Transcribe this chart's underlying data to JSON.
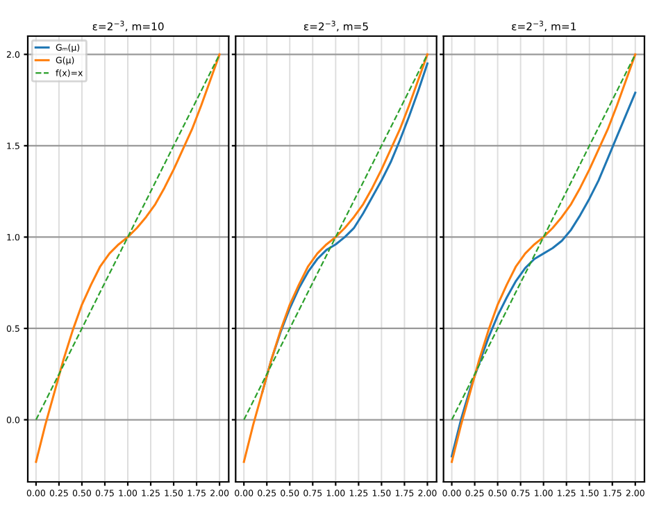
{
  "chart_data": [
    {
      "type": "line",
      "title": "ε=2$^{−3}$, m=10",
      "xlim": [
        -0.09,
        2.1
      ],
      "ylim": [
        -0.34,
        2.1
      ],
      "xticks": [
        {
          "value": 0,
          "label": "0.00"
        },
        {
          "value": 0.25,
          "label": "0.25"
        },
        {
          "value": 0.5,
          "label": "0.50"
        },
        {
          "value": 0.75,
          "label": "0.75"
        },
        {
          "value": 1,
          "label": "1.00"
        },
        {
          "value": 1.25,
          "label": "1.25"
        },
        {
          "value": 1.5,
          "label": "1.50"
        },
        {
          "value": 1.75,
          "label": "1.75"
        },
        {
          "value": 2,
          "label": "2.00"
        }
      ],
      "yticks": [
        {
          "value": 0,
          "label": "0.0"
        },
        {
          "value": 0.5,
          "label": "0.5"
        },
        {
          "value": 1,
          "label": "1.0"
        },
        {
          "value": 1.5,
          "label": "1.5"
        },
        {
          "value": 2,
          "label": "2.0"
        }
      ],
      "grid": true,
      "legend": "top left",
      "x": [
        0,
        0.1,
        0.2,
        0.3,
        0.4,
        0.5,
        0.6,
        0.7,
        0.8,
        0.9,
        1.0,
        1.1,
        1.2,
        1.3,
        1.4,
        1.5,
        1.6,
        1.7,
        1.8,
        1.9,
        2.0
      ],
      "series": [
        {
          "name": "Gₘ(μ)",
          "color": "#1f77b4",
          "values": [
            null,
            null,
            null,
            null,
            null,
            null,
            null,
            null,
            null,
            null,
            null,
            null,
            null,
            null,
            null,
            null,
            null,
            null,
            null,
            null,
            null
          ]
        },
        {
          "name": "G(μ)",
          "color": "#ff7f0e",
          "values": [
            -0.23,
            -0.03,
            0.15,
            0.33,
            0.49,
            0.63,
            0.74,
            0.84,
            0.91,
            0.96,
            1.0,
            1.05,
            1.11,
            1.18,
            1.27,
            1.37,
            1.48,
            1.59,
            1.72,
            1.86,
            2.0
          ]
        },
        {
          "name": "f(x)=x",
          "color": "#2ca02c",
          "line_style": "dashed",
          "values": [
            0,
            0.1,
            0.2,
            0.3,
            0.4,
            0.5,
            0.6,
            0.7,
            0.8,
            0.9,
            1.0,
            1.1,
            1.2,
            1.3,
            1.4,
            1.5,
            1.6,
            1.7,
            1.8,
            1.9,
            2.0
          ]
        }
      ]
    },
    {
      "type": "line",
      "title": "ε=2$^{−3}$, m=5",
      "xlim": [
        -0.09,
        2.1
      ],
      "ylim": [
        -0.34,
        2.1
      ],
      "xticks": [
        {
          "value": 0,
          "label": "0.00"
        },
        {
          "value": 0.25,
          "label": "0.25"
        },
        {
          "value": 0.5,
          "label": "0.50"
        },
        {
          "value": 0.75,
          "label": "0.75"
        },
        {
          "value": 1,
          "label": "1.00"
        },
        {
          "value": 1.25,
          "label": "1.25"
        },
        {
          "value": 1.5,
          "label": "1.50"
        },
        {
          "value": 1.75,
          "label": "1.75"
        },
        {
          "value": 2,
          "label": "2.00"
        }
      ],
      "yticks": [
        {
          "value": 0,
          "label": null
        },
        {
          "value": 0.5,
          "label": null
        },
        {
          "value": 1,
          "label": null
        },
        {
          "value": 1.5,
          "label": null
        },
        {
          "value": 2,
          "label": null
        }
      ],
      "grid": true,
      "tick_labels": "x",
      "x": [
        0,
        0.1,
        0.2,
        0.3,
        0.4,
        0.5,
        0.6,
        0.7,
        0.8,
        0.9,
        1.0,
        1.1,
        1.2,
        1.3,
        1.4,
        1.5,
        1.6,
        1.7,
        1.8,
        1.9,
        2.0
      ],
      "series": [
        {
          "color": "#1f77b4",
          "values": [
            null,
            null,
            0.15,
            0.33,
            0.48,
            0.61,
            0.72,
            0.81,
            0.88,
            0.93,
            0.96,
            1.0,
            1.05,
            1.13,
            1.22,
            1.31,
            1.41,
            1.53,
            1.66,
            1.8,
            1.95
          ]
        },
        {
          "color": "#ff7f0e",
          "values": [
            -0.23,
            -0.03,
            0.15,
            0.33,
            0.49,
            0.63,
            0.74,
            0.84,
            0.91,
            0.96,
            1.0,
            1.05,
            1.11,
            1.18,
            1.27,
            1.37,
            1.48,
            1.59,
            1.72,
            1.86,
            2.0
          ]
        },
        {
          "color": "#2ca02c",
          "line_style": "dashed",
          "values": [
            0,
            0.1,
            0.2,
            0.3,
            0.4,
            0.5,
            0.6,
            0.7,
            0.8,
            0.9,
            1.0,
            1.1,
            1.2,
            1.3,
            1.4,
            1.5,
            1.6,
            1.7,
            1.8,
            1.9,
            2.0
          ]
        }
      ]
    },
    {
      "type": "line",
      "title": "ε=2$^{−3}$, m=1",
      "xlim": [
        -0.09,
        2.1
      ],
      "ylim": [
        -0.34,
        2.1
      ],
      "xticks": [
        {
          "value": 0,
          "label": "0.00"
        },
        {
          "value": 0.25,
          "label": "0.25"
        },
        {
          "value": 0.5,
          "label": "0.50"
        },
        {
          "value": 0.75,
          "label": "0.75"
        },
        {
          "value": 1,
          "label": "1.00"
        },
        {
          "value": 1.25,
          "label": "1.25"
        },
        {
          "value": 1.5,
          "label": "1.50"
        },
        {
          "value": 1.75,
          "label": "1.75"
        },
        {
          "value": 2,
          "label": "2.00"
        }
      ],
      "yticks": [
        {
          "value": 0,
          "label": null
        },
        {
          "value": 0.5,
          "label": null
        },
        {
          "value": 1,
          "label": null
        },
        {
          "value": 1.5,
          "label": null
        },
        {
          "value": 2,
          "label": null
        }
      ],
      "grid": true,
      "tick_labels": "x",
      "x": [
        0,
        0.1,
        0.2,
        0.3,
        0.4,
        0.5,
        0.6,
        0.7,
        0.8,
        0.9,
        1.0,
        1.1,
        1.2,
        1.3,
        1.4,
        1.5,
        1.6,
        1.7,
        1.8,
        1.9,
        2.0
      ],
      "series": [
        {
          "color": "#1f77b4",
          "values": [
            -0.2,
            0.0,
            0.17,
            0.31,
            0.45,
            0.57,
            0.67,
            0.76,
            0.83,
            0.88,
            0.91,
            0.94,
            0.98,
            1.04,
            1.12,
            1.21,
            1.31,
            1.43,
            1.55,
            1.67,
            1.79
          ]
        },
        {
          "color": "#ff7f0e",
          "values": [
            -0.23,
            -0.03,
            0.15,
            0.33,
            0.49,
            0.63,
            0.74,
            0.84,
            0.91,
            0.96,
            1.0,
            1.05,
            1.11,
            1.18,
            1.27,
            1.37,
            1.48,
            1.59,
            1.72,
            1.86,
            2.0
          ]
        },
        {
          "color": "#2ca02c",
          "line_style": "dashed",
          "values": [
            0,
            0.1,
            0.2,
            0.3,
            0.4,
            0.5,
            0.6,
            0.7,
            0.8,
            0.9,
            1.0,
            1.1,
            1.2,
            1.3,
            1.4,
            1.5,
            1.6,
            1.7,
            1.8,
            1.9,
            2.0
          ]
        }
      ]
    }
  ]
}
